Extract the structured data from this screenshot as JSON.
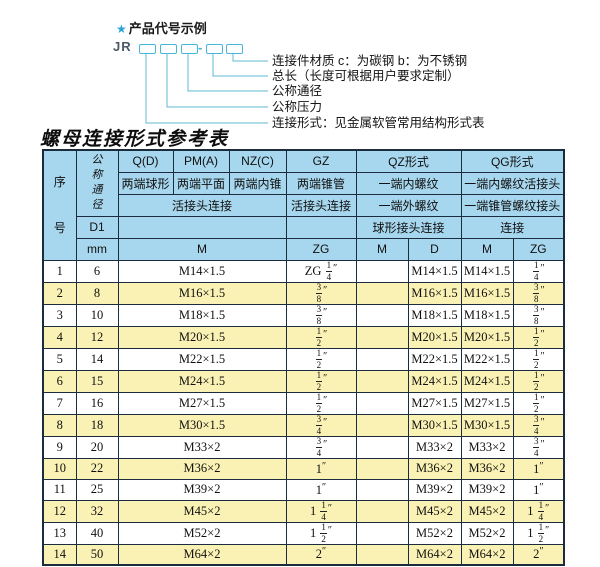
{
  "diagram": {
    "star_icon": "★",
    "title": "产品代号示例",
    "code_prefix": "JR",
    "dash": "-",
    "labels": [
      "连接件材质  c：为碳钢  b：为不锈钢",
      "总长（长度可根据用户要求定制）",
      "公称通径",
      "公称压力",
      "连接形式：见金属软管常用结构形式表"
    ]
  },
  "table": {
    "title": "螺母连接形式参考表",
    "header": {
      "seq": "序号",
      "dn": "公称通径",
      "d1": "D1",
      "mm": "mm",
      "q_d": "Q(D)",
      "pm_a": "PM(A)",
      "nz_c": "NZ(C)",
      "gz": "GZ",
      "qz": "QZ形式",
      "qg": "QG形式",
      "q_d_desc": "两端球形",
      "pm_a_desc": "两端平面",
      "nz_c_desc": "两端内锥",
      "gz_desc": "两端锥管",
      "qz_desc1": "一端内螺纹",
      "qg_desc1": "一端内螺纹活接头",
      "union_conn": "活接头连接",
      "gz_conn": "活接头连接",
      "qz_desc2": "一端外螺纹",
      "qg_desc2": "一端锥管螺纹接头",
      "qz_conn": "球形接头连接",
      "qg_conn": "连接",
      "m1": "M",
      "zg1": "ZG",
      "m2": "M",
      "d2": "D",
      "m3": "M",
      "zg3": "ZG"
    },
    "rows": [
      {
        "no": "1",
        "dn": "6",
        "m": "M14×1.5",
        "gz": "ZG 1/4″",
        "qz_m": "",
        "qz_d": "M14×1.5",
        "qg_m": "M14×1.5",
        "qg_zg": "1/4″"
      },
      {
        "no": "2",
        "dn": "8",
        "m": "M16×1.5",
        "gz": "3/8″",
        "qz_m": "",
        "qz_d": "M16×1.5",
        "qg_m": "M16×1.5",
        "qg_zg": "3/8″"
      },
      {
        "no": "3",
        "dn": "10",
        "m": "M18×1.5",
        "gz": "3/8″",
        "qz_m": "",
        "qz_d": "M18×1.5",
        "qg_m": "M18×1.5",
        "qg_zg": "3/8″"
      },
      {
        "no": "4",
        "dn": "12",
        "m": "M20×1.5",
        "gz": "1/2″",
        "qz_m": "",
        "qz_d": "M20×1.5",
        "qg_m": "M20×1.5",
        "qg_zg": "1/2″"
      },
      {
        "no": "5",
        "dn": "14",
        "m": "M22×1.5",
        "gz": "1/2″",
        "qz_m": "",
        "qz_d": "M22×1.5",
        "qg_m": "M22×1.5",
        "qg_zg": "1/2″"
      },
      {
        "no": "6",
        "dn": "15",
        "m": "M24×1.5",
        "gz": "1/2″",
        "qz_m": "",
        "qz_d": "M24×1.5",
        "qg_m": "M24×1.5",
        "qg_zg": "1/2″"
      },
      {
        "no": "7",
        "dn": "16",
        "m": "M27×1.5",
        "gz": "1/2″",
        "qz_m": "",
        "qz_d": "M27×1.5",
        "qg_m": "M27×1.5",
        "qg_zg": "1/2″"
      },
      {
        "no": "8",
        "dn": "18",
        "m": "M30×1.5",
        "gz": "3/4″",
        "qz_m": "",
        "qz_d": "M30×1.5",
        "qg_m": "M30×1.5",
        "qg_zg": "3/4″"
      },
      {
        "no": "9",
        "dn": "20",
        "m": "M33×2",
        "gz": "3/4″",
        "qz_m": "",
        "qz_d": "M33×2",
        "qg_m": "M33×2",
        "qg_zg": "3/4″"
      },
      {
        "no": "10",
        "dn": "22",
        "m": "M36×2",
        "gz": "1″",
        "qz_m": "",
        "qz_d": "M36×2",
        "qg_m": "M36×2",
        "qg_zg": "1″"
      },
      {
        "no": "11",
        "dn": "25",
        "m": "M39×2",
        "gz": "1″",
        "qz_m": "",
        "qz_d": "M39×2",
        "qg_m": "M39×2",
        "qg_zg": "1″"
      },
      {
        "no": "12",
        "dn": "32",
        "m": "M45×2",
        "gz": "1 1/4″",
        "qz_m": "",
        "qz_d": "M45×2",
        "qg_m": "M45×2",
        "qg_zg": "1 1/4″"
      },
      {
        "no": "13",
        "dn": "40",
        "m": "M52×2",
        "gz": "1 1/2″",
        "qz_m": "",
        "qz_d": "M52×2",
        "qg_m": "M52×2",
        "qg_zg": "1 1/2″"
      },
      {
        "no": "14",
        "dn": "50",
        "m": "M64×2",
        "gz": "2″",
        "qz_m": "",
        "qz_d": "M64×2",
        "qg_m": "M64×2",
        "qg_zg": "2″"
      }
    ]
  },
  "colors": {
    "header_blue": "#a7d7ee",
    "row_yellow": "#faf2b4",
    "border_dark": "#1a2c3e",
    "diagram_line": "#62b8d4",
    "star_blue": "#2ba3d8"
  }
}
